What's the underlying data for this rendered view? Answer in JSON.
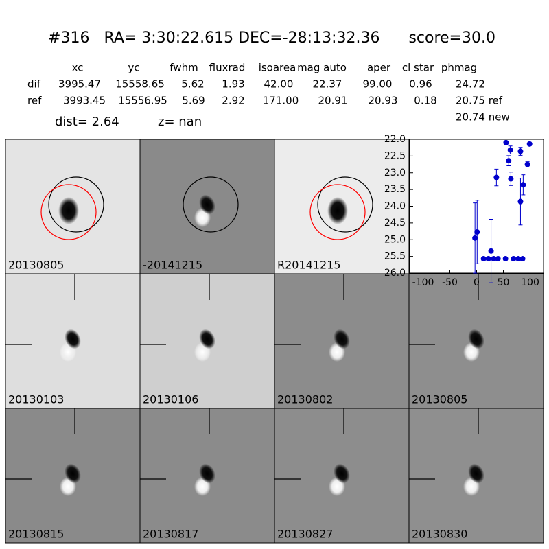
{
  "header": {
    "id": "#316",
    "coords": "RA= 3:30:22.615 DEC=-28:13:32.36",
    "score": "score=30.0"
  },
  "table": {
    "columns": [
      "xc",
      "yc",
      "fwhm",
      "fluxrad",
      "isoarea",
      "mag auto",
      "aper",
      "cl star",
      "phmag"
    ],
    "rows": [
      [
        "dif",
        "3995.47",
        "15558.65",
        "5.62",
        "1.93",
        "42.00",
        "22.37",
        "99.00",
        "0.96",
        "24.72"
      ],
      [
        "ref",
        "3993.45",
        "15556.95",
        "5.69",
        "2.92",
        "171.00",
        "20.91",
        "20.93",
        "0.18",
        "20.75 ref"
      ]
    ],
    "extra": "20.74 new"
  },
  "dist": {
    "dist": "dist=  2.64",
    "z": "z=   nan"
  },
  "panels": [
    {
      "label": "20130805",
      "label_color": "#000000",
      "bg": "#e4e4e4",
      "kind": "direct",
      "circles": [
        "#000000",
        "#ff0000"
      ]
    },
    {
      "label": "-20141215",
      "label_color": "#000000",
      "bg": "#8a8a8a",
      "kind": "diff",
      "circles": [
        "#000000"
      ]
    },
    {
      "label": "R20141215",
      "label_color": "#000000",
      "bg": "#ececec",
      "kind": "direct",
      "circles": [
        "#000000",
        "#ff0000"
      ]
    },
    null,
    {
      "label": "20130103",
      "label_color": "#000000",
      "bg": "#dedede",
      "kind": "diff",
      "crosshair": true
    },
    {
      "label": "20130106",
      "label_color": "#000000",
      "bg": "#cfcfcf",
      "kind": "diff",
      "crosshair": true
    },
    {
      "label": "20130802",
      "label_color": "#000000",
      "bg": "#8c8c8c",
      "kind": "diff",
      "crosshair": true
    },
    {
      "label": "20130805",
      "label_color": "#ff0000",
      "bg": "#8e8e8e",
      "kind": "diff",
      "crosshair": true
    },
    {
      "label": "20130815",
      "label_color": "#000000",
      "bg": "#8a8a8a",
      "kind": "diff",
      "crosshair": true
    },
    {
      "label": "20130817",
      "label_color": "#000000",
      "bg": "#8b8b8b",
      "kind": "diff",
      "crosshair": true
    },
    {
      "label": "20130827",
      "label_color": "#000000",
      "bg": "#8d8d8d",
      "kind": "diff",
      "crosshair": true
    },
    {
      "label": "20130830",
      "label_color": "#000000",
      "bg": "#8f8f8f",
      "kind": "diff",
      "crosshair": true
    }
  ],
  "chart_data": {
    "type": "scatter",
    "color": "#0000cc",
    "x": [
      -3,
      1,
      13,
      22,
      27,
      32,
      37,
      40,
      54,
      55,
      60,
      63,
      64,
      69,
      78,
      82,
      82,
      86,
      87,
      95,
      99
    ],
    "values": [
      24.95,
      24.77,
      25.57,
      25.57,
      25.34,
      25.57,
      23.14,
      25.57,
      25.57,
      22.1,
      22.64,
      22.32,
      23.18,
      25.57,
      25.57,
      22.36,
      23.86,
      25.57,
      23.36,
      22.75,
      22.14
    ],
    "errors": [
      1.05,
      0.95,
      0.05,
      0.05,
      0.95,
      0.05,
      0.25,
      0.05,
      0.05,
      0.05,
      0.15,
      0.12,
      0.2,
      0.05,
      0.05,
      0.12,
      0.7,
      0.05,
      0.3,
      0.08,
      0.05
    ],
    "xlim": [
      -125,
      125
    ],
    "xticks": [
      -100,
      -50,
      0,
      50,
      100
    ],
    "ylim": [
      26,
      22
    ],
    "yticks": [
      {
        "value": 22,
        "label": "22.0"
      },
      {
        "value": 22.5,
        "label": "22.5"
      },
      {
        "value": 23,
        "label": "23.0"
      },
      {
        "value": 23.5,
        "label": "23.5"
      },
      {
        "value": 24,
        "label": "24.0"
      },
      {
        "value": 24.5,
        "label": "24.5"
      },
      {
        "value": 25,
        "label": "25.0"
      },
      {
        "value": 25.5,
        "label": "25.5"
      },
      {
        "value": 26,
        "label": "26.0"
      }
    ]
  }
}
